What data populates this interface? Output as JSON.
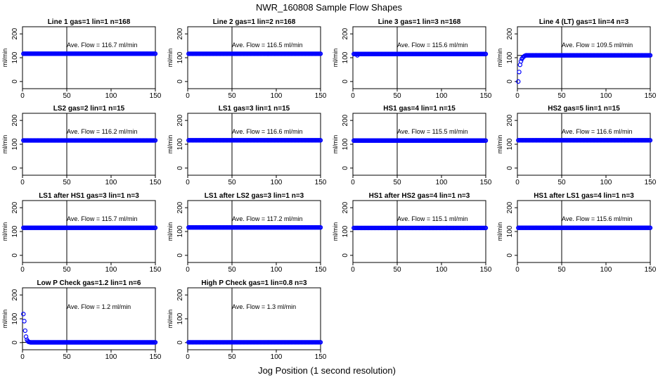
{
  "figure": {
    "title": "NWR_160808  Sample Flow Shapes",
    "xlabel": "Jog Position (1 second resolution)"
  },
  "chart_data": [
    {
      "type": "scatter",
      "title": "Line 1 gas=1 lin=1 n=168",
      "ylabel": "ml/min",
      "annotation": "Ave. Flow = 116.7  ml/min",
      "xlim": [
        0,
        150
      ],
      "ylim": [
        -30,
        230
      ],
      "xticks": [
        0,
        50,
        100,
        150
      ],
      "yticks": [
        0,
        100,
        200
      ],
      "vline": 50,
      "hline": 116.7,
      "series": [
        {
          "shape": "flat",
          "x": [
            1,
            150
          ],
          "value": 116.7
        }
      ]
    },
    {
      "type": "scatter",
      "title": "Line 2 gas=1 lin=2 n=168",
      "ylabel": "ml/min",
      "annotation": "Ave. Flow = 116.5  ml/min",
      "xlim": [
        0,
        150
      ],
      "ylim": [
        -30,
        230
      ],
      "xticks": [
        0,
        50,
        100,
        150
      ],
      "yticks": [
        0,
        100,
        200
      ],
      "vline": 50,
      "hline": 116.5,
      "series": [
        {
          "shape": "flat",
          "x": [
            1,
            150
          ],
          "value": 116.5
        }
      ]
    },
    {
      "type": "scatter",
      "title": "Line 3 gas=1 lin=3 n=168",
      "ylabel": "ml/min",
      "annotation": "Ave. Flow = 115.6  ml/min",
      "xlim": [
        0,
        150
      ],
      "ylim": [
        -30,
        230
      ],
      "xticks": [
        0,
        50,
        100,
        150
      ],
      "yticks": [
        0,
        100,
        200
      ],
      "vline": 50,
      "hline": 115.6,
      "series": [
        {
          "shape": "flat",
          "x": [
            1,
            150
          ],
          "value": 115.6,
          "extra_points": [
            [
              5,
              110
            ]
          ]
        }
      ]
    },
    {
      "type": "scatter",
      "title": "Line 4 (LT) gas=1 lin=4 n=3",
      "ylabel": "ml/min",
      "annotation": "Ave. Flow = 109.5  ml/min",
      "xlim": [
        0,
        150
      ],
      "ylim": [
        -30,
        230
      ],
      "xticks": [
        0,
        50,
        100,
        150
      ],
      "yticks": [
        0,
        100,
        200
      ],
      "vline": 50,
      "hline": 109.5,
      "series": [
        {
          "shape": "flat",
          "x": [
            10,
            150
          ],
          "value": 110,
          "extra_points": [
            [
              1,
              0
            ],
            [
              2,
              40
            ],
            [
              3,
              70
            ],
            [
              4,
              85
            ],
            [
              5,
              95
            ],
            [
              6,
              100
            ],
            [
              7,
              104
            ],
            [
              8,
              107
            ],
            [
              9,
              109
            ]
          ]
        }
      ]
    },
    {
      "type": "scatter",
      "title": "LS2 gas=2 lin=1 n=15",
      "ylabel": "ml/min",
      "annotation": "Ave. Flow = 116.2  ml/min",
      "xlim": [
        0,
        150
      ],
      "ylim": [
        -30,
        230
      ],
      "xticks": [
        0,
        50,
        100,
        150
      ],
      "yticks": [
        0,
        100,
        200
      ],
      "vline": 50,
      "hline": 116.2,
      "series": [
        {
          "shape": "flat",
          "x": [
            1,
            150
          ],
          "value": 116.2
        }
      ]
    },
    {
      "type": "scatter",
      "title": "LS1 gas=3 lin=1 n=15",
      "ylabel": "ml/min",
      "annotation": "Ave. Flow = 116.6  ml/min",
      "xlim": [
        0,
        150
      ],
      "ylim": [
        -30,
        230
      ],
      "xticks": [
        0,
        50,
        100,
        150
      ],
      "yticks": [
        0,
        100,
        200
      ],
      "vline": 50,
      "hline": 116.6,
      "series": [
        {
          "shape": "flat",
          "x": [
            1,
            150
          ],
          "value": 116.6
        }
      ]
    },
    {
      "type": "scatter",
      "title": "HS1 gas=4 lin=1 n=15",
      "ylabel": "ml/min",
      "annotation": "Ave. Flow = 115.5  ml/min",
      "xlim": [
        0,
        150
      ],
      "ylim": [
        -30,
        230
      ],
      "xticks": [
        0,
        50,
        100,
        150
      ],
      "yticks": [
        0,
        100,
        200
      ],
      "vline": 50,
      "hline": 115.5,
      "series": [
        {
          "shape": "flat",
          "x": [
            1,
            150
          ],
          "value": 115.5
        }
      ]
    },
    {
      "type": "scatter",
      "title": "HS2 gas=5 lin=1 n=15",
      "ylabel": "ml/min",
      "annotation": "Ave. Flow = 116.6  ml/min",
      "xlim": [
        0,
        150
      ],
      "ylim": [
        -30,
        230
      ],
      "xticks": [
        0,
        50,
        100,
        150
      ],
      "yticks": [
        0,
        100,
        200
      ],
      "vline": 50,
      "hline": 116.6,
      "series": [
        {
          "shape": "flat",
          "x": [
            1,
            150
          ],
          "value": 116.6
        }
      ]
    },
    {
      "type": "scatter",
      "title": "LS1 after HS1 gas=3 lin=1 n=3",
      "ylabel": "ml/min",
      "annotation": "Ave. Flow = 115.7  ml/min",
      "xlim": [
        0,
        150
      ],
      "ylim": [
        -30,
        230
      ],
      "xticks": [
        0,
        50,
        100,
        150
      ],
      "yticks": [
        0,
        100,
        200
      ],
      "vline": 50,
      "hline": 115.7,
      "series": [
        {
          "shape": "flat",
          "x": [
            1,
            150
          ],
          "value": 115.7
        }
      ]
    },
    {
      "type": "scatter",
      "title": "LS1 after LS2 gas=3 lin=1 n=3",
      "ylabel": "ml/min",
      "annotation": "Ave. Flow = 117.2  ml/min",
      "xlim": [
        0,
        150
      ],
      "ylim": [
        -30,
        230
      ],
      "xticks": [
        0,
        50,
        100,
        150
      ],
      "yticks": [
        0,
        100,
        200
      ],
      "vline": 50,
      "hline": 117.2,
      "series": [
        {
          "shape": "flat",
          "x": [
            1,
            150
          ],
          "value": 117.2
        }
      ]
    },
    {
      "type": "scatter",
      "title": "HS1 after HS2 gas=4 lin=1 n=3",
      "ylabel": "ml/min",
      "annotation": "Ave. Flow = 115.1  ml/min",
      "xlim": [
        0,
        150
      ],
      "ylim": [
        -30,
        230
      ],
      "xticks": [
        0,
        50,
        100,
        150
      ],
      "yticks": [
        0,
        100,
        200
      ],
      "vline": 50,
      "hline": 115.1,
      "series": [
        {
          "shape": "flat",
          "x": [
            1,
            150
          ],
          "value": 115.1
        }
      ]
    },
    {
      "type": "scatter",
      "title": "HS1 after LS1 gas=4 lin=1 n=3",
      "ylabel": "ml/min",
      "annotation": "Ave. Flow = 115.6  ml/min",
      "xlim": [
        0,
        150
      ],
      "ylim": [
        -30,
        230
      ],
      "xticks": [
        0,
        50,
        100,
        150
      ],
      "yticks": [
        0,
        100,
        200
      ],
      "vline": 50,
      "hline": 115.6,
      "series": [
        {
          "shape": "flat",
          "x": [
            1,
            150
          ],
          "value": 115.6
        }
      ]
    },
    {
      "type": "scatter",
      "title": "Low P Check gas=1.2 lin=1 n=6",
      "ylabel": "ml/min",
      "annotation": "Ave. Flow = 1.2  ml/min",
      "xlim": [
        0,
        150
      ],
      "ylim": [
        -30,
        230
      ],
      "xticks": [
        0,
        50,
        100,
        150
      ],
      "yticks": [
        0,
        100,
        200
      ],
      "vline": 50,
      "hline": 1.2,
      "series": [
        {
          "shape": "flat",
          "x": [
            9,
            150
          ],
          "value": 1,
          "extra_points": [
            [
              1,
              120
            ],
            [
              2,
              90
            ],
            [
              3,
              50
            ],
            [
              4,
              25
            ],
            [
              5,
              12
            ],
            [
              6,
              6
            ],
            [
              7,
              3
            ],
            [
              8,
              2
            ]
          ]
        }
      ]
    },
    {
      "type": "scatter",
      "title": "High P Check gas=1 lin=0.8 n=3",
      "ylabel": "ml/min",
      "annotation": "Ave. Flow = 1.3  ml/min",
      "xlim": [
        0,
        150
      ],
      "ylim": [
        -30,
        230
      ],
      "xticks": [
        0,
        50,
        100,
        150
      ],
      "yticks": [
        0,
        100,
        200
      ],
      "vline": 50,
      "hline": 1.3,
      "series": [
        {
          "shape": "flat",
          "x": [
            1,
            150
          ],
          "value": 1.3
        }
      ]
    }
  ],
  "colors": {
    "points": "#0000ff",
    "axes": "#000000",
    "background": "#ffffff"
  }
}
